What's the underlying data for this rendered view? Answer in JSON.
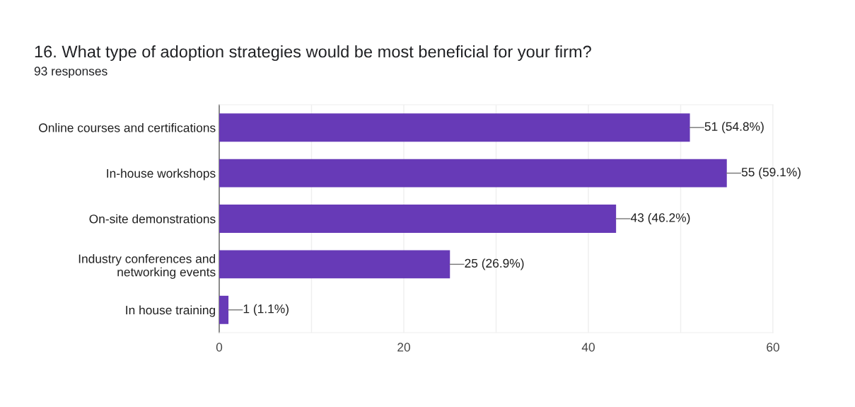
{
  "chart_data": {
    "type": "bar",
    "orientation": "horizontal",
    "title": "16. What type of adoption strategies would be most beneficial for your firm?",
    "subtitle": "93 responses",
    "categories": [
      "Online courses and certifications",
      "In-house workshops",
      "On-site demonstrations",
      "Industry conferences and\nnetworking events",
      "In house training"
    ],
    "values": [
      51,
      55,
      43,
      25,
      1
    ],
    "value_labels": [
      "51 (54.8%)",
      "55 (59.1%)",
      "43 (46.2%)",
      "25 (26.9%)",
      "1 (1.1%)"
    ],
    "color": "#673ab7",
    "xlim": [
      0,
      60
    ],
    "xticks": [
      0,
      {
        "value": 10,
        "label": null
      },
      20,
      {
        "value": 30,
        "label": null
      },
      40,
      {
        "value": 50,
        "label": null
      },
      60
    ],
    "grid": "x"
  }
}
